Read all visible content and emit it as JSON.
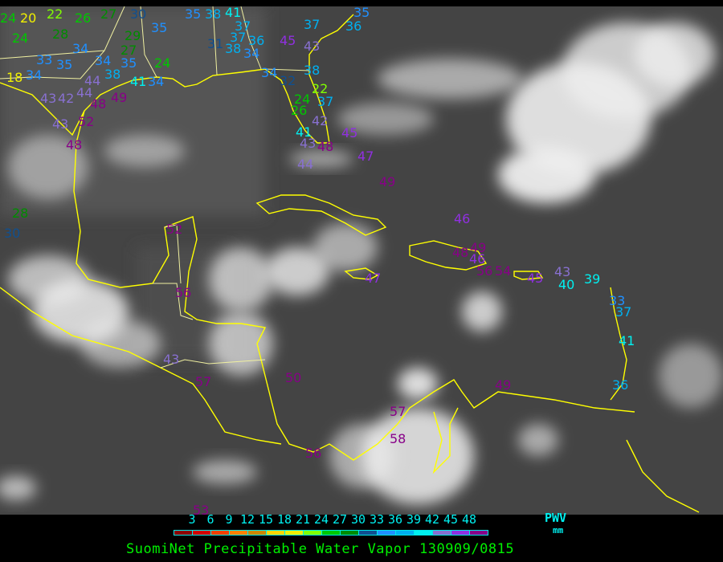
{
  "title": "SuomiNet Precipitable Water Vapor 130909/0815",
  "legend": {
    "label": "PWV",
    "unit": "mm",
    "ticks": [
      "3",
      "6",
      "9",
      "12",
      "15",
      "18",
      "21",
      "24",
      "27",
      "30",
      "33",
      "36",
      "39",
      "42",
      "45",
      "48"
    ],
    "colors": [
      "#8b0000",
      "#d00000",
      "#f04000",
      "#ff8000",
      "#cc8800",
      "#ffd700",
      "#f0f000",
      "#80ff00",
      "#00c800",
      "#008c00",
      "#105090",
      "#2090ff",
      "#00b0f0",
      "#00f0f0",
      "#8870d0",
      "#9030e0",
      "#880088"
    ]
  },
  "map": {
    "coastline_color": "#ffff00",
    "state_border_color": "#ffffff",
    "station_values": [
      24,
      20,
      22,
      26,
      27,
      30,
      35,
      35,
      38,
      41,
      37,
      37,
      24,
      28,
      34,
      33,
      35,
      34,
      35,
      38,
      41,
      34,
      18,
      34,
      44,
      43,
      42,
      44,
      48,
      49,
      43,
      52,
      48,
      29,
      27,
      24,
      31,
      38,
      36,
      34,
      45,
      43,
      37,
      36,
      35,
      38,
      34,
      32,
      22,
      24,
      26,
      37,
      42,
      41,
      43,
      48,
      45,
      47,
      44,
      49,
      28,
      30,
      52,
      56,
      43,
      57,
      50,
      46,
      48,
      49,
      46,
      56,
      54,
      47,
      45,
      43,
      40,
      39,
      33,
      37,
      41,
      36,
      49,
      57,
      58,
      56,
      53
    ]
  }
}
